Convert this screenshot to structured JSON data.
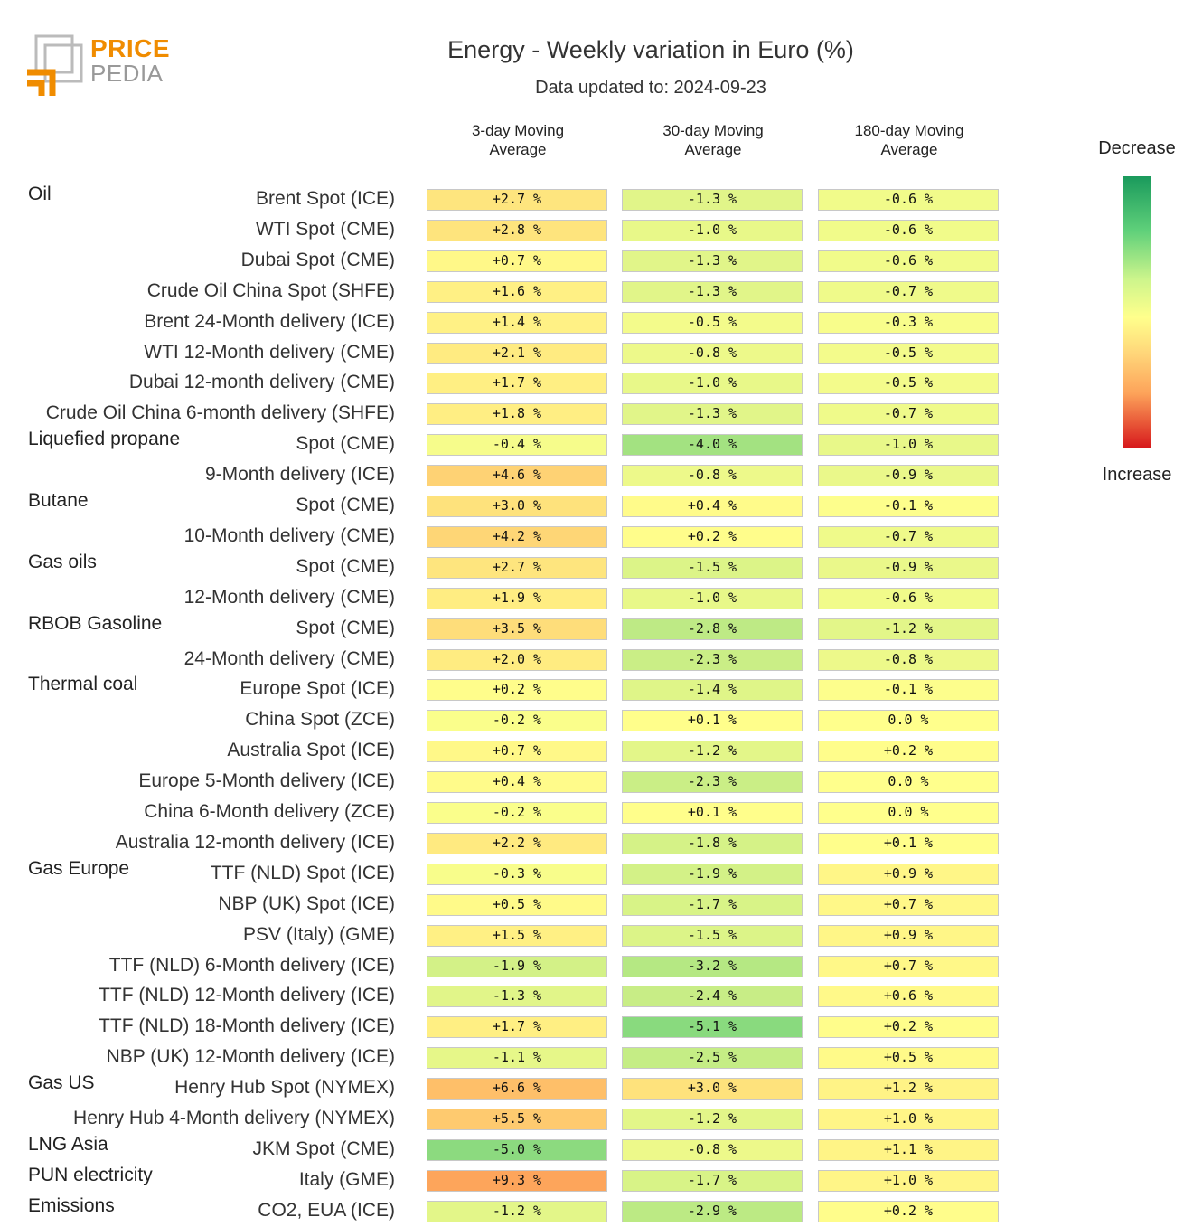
{
  "logo": {
    "line1": "PRICE",
    "line2": "PEDIA"
  },
  "header": {
    "title": "Energy - Weekly variation in Euro (%)",
    "subtitle": "Data updated to: 2024-09-23"
  },
  "legend": {
    "top": "Decrease",
    "bottom": "Increase"
  },
  "colors": {
    "decrease": "#1a9a5c",
    "neutral": "#ffff8c",
    "increase": "#d7191c"
  },
  "chart_data": {
    "type": "table",
    "title": "Energy - Weekly variation in Euro (%)",
    "columns": [
      "3-day Moving\nAverage",
      "30-day Moving\nAverage",
      "180-day Moving\nAverage"
    ],
    "unit": "%",
    "rows": [
      {
        "group": "Oil",
        "label": "Brent Spot (ICE)",
        "values": [
          2.7,
          -1.3,
          -0.6
        ],
        "texts": [
          "+2.7 %",
          "-1.3 %",
          "-0.6 %"
        ]
      },
      {
        "group": "",
        "label": "WTI Spot (CME)",
        "values": [
          2.8,
          -1.0,
          -0.6
        ],
        "texts": [
          "+2.8 %",
          "-1.0 %",
          "-0.6 %"
        ]
      },
      {
        "group": "",
        "label": "Dubai Spot (CME)",
        "values": [
          0.7,
          -1.3,
          -0.6
        ],
        "texts": [
          "+0.7 %",
          "-1.3 %",
          "-0.6 %"
        ]
      },
      {
        "group": "",
        "label": "Crude Oil China Spot (SHFE)",
        "values": [
          1.6,
          -1.3,
          -0.7
        ],
        "texts": [
          "+1.6 %",
          "-1.3 %",
          "-0.7 %"
        ]
      },
      {
        "group": "",
        "label": "Brent 24-Month delivery (ICE)",
        "values": [
          1.4,
          -0.5,
          -0.3
        ],
        "texts": [
          "+1.4 %",
          "-0.5 %",
          "-0.3 %"
        ]
      },
      {
        "group": "",
        "label": "WTI 12-Month delivery (CME)",
        "values": [
          2.1,
          -0.8,
          -0.5
        ],
        "texts": [
          "+2.1 %",
          "-0.8 %",
          "-0.5 %"
        ]
      },
      {
        "group": "",
        "label": "Dubai 12-month delivery (CME)",
        "values": [
          1.7,
          -1.0,
          -0.5
        ],
        "texts": [
          "+1.7 %",
          "-1.0 %",
          "-0.5 %"
        ]
      },
      {
        "group": "",
        "label": "Crude Oil China 6-month delivery (SHFE)",
        "values": [
          1.8,
          -1.3,
          -0.7
        ],
        "texts": [
          "+1.8 %",
          "-1.3 %",
          "-0.7 %"
        ]
      },
      {
        "group": "Liquefied propane",
        "label": "Spot (CME)",
        "values": [
          -0.4,
          -4.0,
          -1.0
        ],
        "texts": [
          "-0.4 %",
          "-4.0 %",
          "-1.0 %"
        ]
      },
      {
        "group": "",
        "label": "9-Month delivery (ICE)",
        "values": [
          4.6,
          -0.8,
          -0.9
        ],
        "texts": [
          "+4.6 %",
          "-0.8 %",
          "-0.9 %"
        ]
      },
      {
        "group": "Butane",
        "label": "Spot (CME)",
        "values": [
          3.0,
          0.4,
          -0.1
        ],
        "texts": [
          "+3.0 %",
          "+0.4 %",
          "-0.1 %"
        ]
      },
      {
        "group": "",
        "label": "10-Month delivery (CME)",
        "values": [
          4.2,
          0.2,
          -0.7
        ],
        "texts": [
          "+4.2 %",
          "+0.2 %",
          "-0.7 %"
        ]
      },
      {
        "group": "Gas oils",
        "label": "Spot (CME)",
        "values": [
          2.7,
          -1.5,
          -0.9
        ],
        "texts": [
          "+2.7 %",
          "-1.5 %",
          "-0.9 %"
        ]
      },
      {
        "group": "",
        "label": "12-Month delivery (CME)",
        "values": [
          1.9,
          -1.0,
          -0.6
        ],
        "texts": [
          "+1.9 %",
          "-1.0 %",
          "-0.6 %"
        ]
      },
      {
        "group": "RBOB Gasoline",
        "label": "Spot (CME)",
        "values": [
          3.5,
          -2.8,
          -1.2
        ],
        "texts": [
          "+3.5 %",
          "-2.8 %",
          "-1.2 %"
        ]
      },
      {
        "group": "",
        "label": "24-Month delivery (CME)",
        "values": [
          2.0,
          -2.3,
          -0.8
        ],
        "texts": [
          "+2.0 %",
          "-2.3 %",
          "-0.8 %"
        ]
      },
      {
        "group": "Thermal coal",
        "label": "Europe Spot (ICE)",
        "values": [
          0.2,
          -1.4,
          -0.1
        ],
        "texts": [
          "+0.2 %",
          "-1.4 %",
          "-0.1 %"
        ]
      },
      {
        "group": "",
        "label": "China Spot (ZCE)",
        "values": [
          -0.2,
          0.1,
          0.0
        ],
        "texts": [
          "-0.2 %",
          "+0.1 %",
          "0.0 %"
        ]
      },
      {
        "group": "",
        "label": "Australia Spot (ICE)",
        "values": [
          0.7,
          -1.2,
          0.2
        ],
        "texts": [
          "+0.7 %",
          "-1.2 %",
          "+0.2 %"
        ]
      },
      {
        "group": "",
        "label": "Europe 5-Month delivery (ICE)",
        "values": [
          0.4,
          -2.3,
          0.0
        ],
        "texts": [
          "+0.4 %",
          "-2.3 %",
          "0.0 %"
        ]
      },
      {
        "group": "",
        "label": "China 6-Month delivery (ZCE)",
        "values": [
          -0.2,
          0.1,
          0.0
        ],
        "texts": [
          "-0.2 %",
          "+0.1 %",
          "0.0 %"
        ]
      },
      {
        "group": "",
        "label": "Australia 12-month delivery (ICE)",
        "values": [
          2.2,
          -1.8,
          0.1
        ],
        "texts": [
          "+2.2 %",
          "-1.8 %",
          "+0.1 %"
        ]
      },
      {
        "group": "Gas Europe",
        "label": "TTF (NLD) Spot (ICE)",
        "values": [
          -0.3,
          -1.9,
          0.9
        ],
        "texts": [
          "-0.3 %",
          "-1.9 %",
          "+0.9 %"
        ]
      },
      {
        "group": "",
        "label": "NBP (UK) Spot (ICE)",
        "values": [
          0.5,
          -1.7,
          0.7
        ],
        "texts": [
          "+0.5 %",
          "-1.7 %",
          "+0.7 %"
        ]
      },
      {
        "group": "",
        "label": "PSV (Italy) (GME)",
        "values": [
          1.5,
          -1.5,
          0.9
        ],
        "texts": [
          "+1.5 %",
          "-1.5 %",
          "+0.9 %"
        ]
      },
      {
        "group": "",
        "label": "TTF (NLD) 6-Month delivery (ICE)",
        "values": [
          -1.9,
          -3.2,
          0.7
        ],
        "texts": [
          "-1.9 %",
          "-3.2 %",
          "+0.7 %"
        ]
      },
      {
        "group": "",
        "label": "TTF (NLD) 12-Month delivery (ICE)",
        "values": [
          -1.3,
          -2.4,
          0.6
        ],
        "texts": [
          "-1.3 %",
          "-2.4 %",
          "+0.6 %"
        ]
      },
      {
        "group": "",
        "label": "TTF (NLD) 18-Month delivery (ICE)",
        "values": [
          1.7,
          -5.1,
          0.2
        ],
        "texts": [
          "+1.7 %",
          "-5.1 %",
          "+0.2 %"
        ]
      },
      {
        "group": "",
        "label": "NBP (UK) 12-Month delivery (ICE)",
        "values": [
          -1.1,
          -2.5,
          0.5
        ],
        "texts": [
          "-1.1 %",
          "-2.5 %",
          "+0.5 %"
        ]
      },
      {
        "group": "Gas US",
        "label": "Henry Hub Spot (NYMEX)",
        "values": [
          6.6,
          3.0,
          1.2
        ],
        "texts": [
          "+6.6 %",
          "+3.0 %",
          "+1.2 %"
        ]
      },
      {
        "group": "",
        "label": "Henry Hub 4-Month delivery (NYMEX)",
        "values": [
          5.5,
          -1.2,
          1.0
        ],
        "texts": [
          "+5.5 %",
          "-1.2 %",
          "+1.0 %"
        ]
      },
      {
        "group": "LNG Asia",
        "label": "JKM Spot (CME)",
        "values": [
          -5.0,
          -0.8,
          1.1
        ],
        "texts": [
          "-5.0 %",
          "-0.8 %",
          "+1.1 %"
        ]
      },
      {
        "group": "PUN electricity",
        "label": "Italy (GME)",
        "values": [
          9.3,
          -1.7,
          1.0
        ],
        "texts": [
          "+9.3 %",
          "-1.7 %",
          "+1.0 %"
        ]
      },
      {
        "group": "Emissions",
        "label": "CO2, EUA (ICE)",
        "values": [
          -1.2,
          -2.9,
          0.2
        ],
        "texts": [
          "-1.2 %",
          "-2.9 %",
          "+0.2 %"
        ]
      }
    ]
  }
}
